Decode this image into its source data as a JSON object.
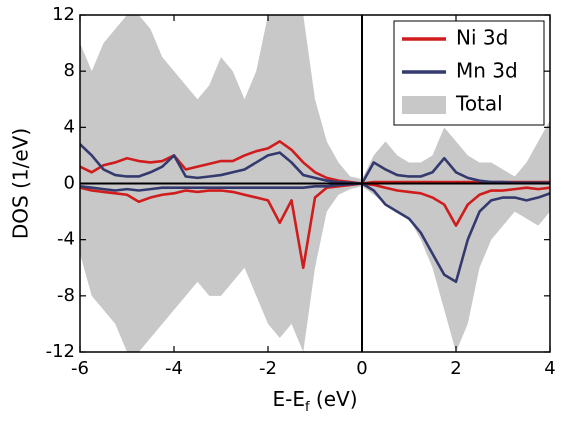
{
  "chart_data": {
    "type": "line",
    "x_label_parts": [
      "E-E",
      "f",
      " (eV)"
    ],
    "y_label": "DOS (1/eV)",
    "x": [
      -6,
      -5.75,
      -5.5,
      -5.25,
      -5,
      -4.75,
      -4.5,
      -4.25,
      -4,
      -3.75,
      -3.5,
      -3.25,
      -3,
      -2.75,
      -2.5,
      -2.25,
      -2,
      -1.75,
      -1.5,
      -1.25,
      -1,
      -0.75,
      -0.5,
      -0.25,
      0,
      0.25,
      0.5,
      0.75,
      1,
      1.25,
      1.5,
      1.75,
      2,
      2.25,
      2.5,
      2.75,
      3,
      3.25,
      3.5,
      3.75,
      4
    ],
    "series": [
      {
        "name": "Ni 3d",
        "color": "#d01c1c",
        "values": [
          1.2,
          0.8,
          1.3,
          1.5,
          1.8,
          1.6,
          1.5,
          1.6,
          2,
          1,
          1.2,
          1.4,
          1.6,
          1.6,
          2,
          2.3,
          2.5,
          3,
          2.4,
          1.5,
          0.8,
          0.4,
          0.2,
          0.1,
          0,
          0.1,
          0.1,
          0.1,
          0.1,
          0.1,
          0.1,
          0.1,
          0.1,
          0.1,
          0.1,
          0.1,
          0.1,
          0.1,
          0.1,
          0.1,
          0.1
        ],
        "values_down": [
          -0.3,
          -0.5,
          -0.6,
          -0.7,
          -0.8,
          -1.3,
          -1,
          -0.8,
          -0.7,
          -0.5,
          -0.6,
          -0.5,
          -0.5,
          -0.6,
          -0.8,
          -1,
          -1.2,
          -2.8,
          -1.2,
          -6,
          -1,
          -0.3,
          -0.2,
          -0.1,
          0,
          -0.1,
          -0.3,
          -0.5,
          -0.6,
          -0.7,
          -1,
          -1.5,
          -3,
          -1.5,
          -0.8,
          -0.5,
          -0.5,
          -0.4,
          -0.3,
          -0.4,
          -0.3
        ]
      },
      {
        "name": "Mn 3d",
        "color": "#343a6e",
        "values": [
          2.8,
          2,
          1,
          0.6,
          0.5,
          0.5,
          0.8,
          1.2,
          2,
          0.5,
          0.4,
          0.5,
          0.6,
          0.8,
          1,
          1.5,
          2,
          2.2,
          1.5,
          0.6,
          0.4,
          0.2,
          0.1,
          0.05,
          0,
          1.5,
          1,
          0.6,
          0.5,
          0.5,
          0.8,
          1.8,
          0.8,
          0.4,
          0.2,
          0.1,
          0.1,
          0.05,
          0.05,
          0.05,
          0.05
        ],
        "values_down": [
          -0.2,
          -0.3,
          -0.4,
          -0.5,
          -0.4,
          -0.5,
          -0.4,
          -0.3,
          -0.3,
          -0.3,
          -0.3,
          -0.3,
          -0.3,
          -0.3,
          -0.3,
          -0.3,
          -0.3,
          -0.3,
          -0.3,
          -0.3,
          -0.2,
          -0.2,
          -0.1,
          -0.05,
          0,
          -0.5,
          -1.5,
          -2,
          -2.5,
          -3.5,
          -5,
          -6.5,
          -7,
          -4,
          -2,
          -1.2,
          -1,
          -1,
          -1.2,
          -1,
          -0.7
        ]
      },
      {
        "name": "Total",
        "color": "#c8c8c8",
        "area": true,
        "values": [
          10,
          8,
          10,
          11,
          12,
          12,
          11,
          9,
          8,
          7,
          6,
          7,
          9,
          8,
          6,
          8,
          12,
          12,
          12,
          12,
          6,
          3,
          1.5,
          0.5,
          0.3,
          2,
          3,
          2,
          1.5,
          1.5,
          2,
          4,
          3,
          2,
          1.5,
          1.5,
          1,
          0.5,
          1.5,
          3,
          4.5
        ],
        "values_down": [
          -5,
          -8,
          -9,
          -10,
          -12,
          -12,
          -11,
          -10,
          -9,
          -8,
          -7,
          -8,
          -8,
          -7,
          -6,
          -8,
          -10,
          -11,
          -10,
          -12,
          -6,
          -2,
          -0.8,
          -0.4,
          -0.2,
          -0.8,
          -1.5,
          -2,
          -2.5,
          -4,
          -6,
          -9,
          -12,
          -10,
          -6,
          -4,
          -3,
          -2,
          -2.5,
          -3,
          -2
        ]
      }
    ],
    "xlim": [
      -6,
      4
    ],
    "xticks": [
      -6,
      -4,
      -2,
      0,
      2,
      4
    ],
    "ylim": [
      -12,
      12
    ],
    "yticks": [
      -12,
      -8,
      -4,
      0,
      4,
      8,
      12
    ],
    "legend": "upper right"
  }
}
